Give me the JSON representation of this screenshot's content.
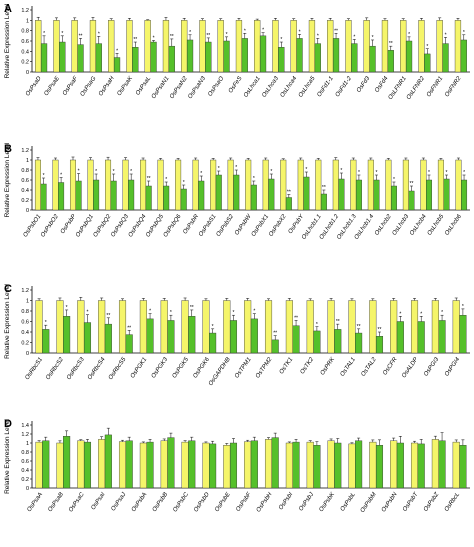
{
  "colors": {
    "series_yellow": "#f5f56a",
    "series_green": "#55c02a",
    "bar_stroke": "#333333",
    "axis": "#000000"
  },
  "chart_data": [
    {
      "type": "bar",
      "panel_label": "A",
      "ylabel": "Relative Expression Level",
      "ylim": [
        0,
        1.2
      ],
      "yticks": [
        "0",
        "0.2",
        "0.4",
        "0.6",
        "0.8",
        "1",
        "1.2"
      ],
      "grid": false,
      "categories": [
        "OsPsaD",
        "OsPsaE",
        "OsPsaF",
        "OsPsaG",
        "OsPsaH",
        "OsPsaK",
        "OsPsaL",
        "OsPsaN1",
        "OsPsaN2",
        "OsPsaN3",
        "OsPsaO",
        "OsFeS",
        "OsLhca1",
        "OsLhca3",
        "OsLhca4",
        "OsLhca5",
        "OsFd1-1",
        "OsFd1-2",
        "OsFd3",
        "OsFd4",
        "OsLFNR1",
        "OsLFNR2",
        "OsFNR1",
        "OsFNR2"
      ],
      "series": [
        {
          "color": "yellow",
          "values": [
            1,
            1,
            1,
            1,
            1,
            1,
            1,
            1,
            1,
            1,
            1,
            1,
            1,
            1,
            1,
            1,
            1,
            1,
            1,
            1,
            1,
            1,
            1,
            1
          ]
        },
        {
          "color": "green",
          "values": [
            0.55,
            0.58,
            0.53,
            0.55,
            0.28,
            0.48,
            0.58,
            0.5,
            0.62,
            0.58,
            0.6,
            0.65,
            0.7,
            0.48,
            0.65,
            0.55,
            0.65,
            0.55,
            0.5,
            0.42,
            0.6,
            0.35,
            0.55,
            0.62
          ]
        }
      ],
      "errors": [
        0.15,
        0.12,
        0.12,
        0.14,
        0.08,
        0.1,
        0.03,
        0.14,
        0.1,
        0.08,
        0.08,
        0.1,
        0.06,
        0.1,
        0.08,
        0.1,
        0.1,
        0.08,
        0.12,
        0.08,
        0.08,
        0.1,
        0.12,
        0.1
      ],
      "annotations": [
        "*",
        "*",
        "**",
        "*",
        "*",
        "**",
        "*",
        "**",
        "*",
        "**",
        "*",
        "*",
        "*",
        "*",
        "*",
        "*",
        "**",
        "*",
        "*",
        "**",
        "*",
        "*",
        "*",
        "*"
      ]
    },
    {
      "type": "bar",
      "panel_label": "B",
      "ylabel": "Relative Expression Level",
      "ylim": [
        0,
        1.2
      ],
      "yticks": [
        "0",
        "0.2",
        "0.4",
        "0.6",
        "0.8",
        "1",
        "1.2"
      ],
      "grid": false,
      "categories": [
        "OsPsbO1",
        "OsPsbO2",
        "OsPsbP",
        "OsPsbQ1",
        "OsPsbQ2",
        "OsPsbQ3",
        "OsPsbQ4",
        "OsPsbQ5",
        "OsPsbQ6",
        "OsPsbR",
        "OsPsbS1",
        "OsPsbS2",
        "OsPsbW",
        "OsPsbX1",
        "OsPsbX2",
        "OsPsbY",
        "OsLhcb1.1",
        "OsLhcb1.2",
        "OsLhcb1.3",
        "OsLhcb1.4",
        "OsLhcb2",
        "OsLhcb3",
        "OsLhcb4",
        "OsLhcb5",
        "OsLhcb6"
      ],
      "series": [
        {
          "color": "yellow",
          "values": [
            1,
            1,
            1,
            1,
            1,
            1,
            1,
            1,
            1,
            1,
            1,
            1,
            1,
            1,
            1,
            1,
            1,
            1,
            1,
            1,
            1,
            1,
            1,
            1,
            1
          ]
        },
        {
          "color": "green",
          "values": [
            0.52,
            0.55,
            0.58,
            0.6,
            0.58,
            0.6,
            0.48,
            0.48,
            0.42,
            0.58,
            0.7,
            0.7,
            0.5,
            0.62,
            0.25,
            0.66,
            0.32,
            0.62,
            0.6,
            0.6,
            0.48,
            0.38,
            0.6,
            0.62,
            0.6
          ]
        }
      ],
      "errors": [
        0.12,
        0.1,
        0.15,
        0.12,
        0.14,
        0.12,
        0.1,
        0.08,
        0.08,
        0.1,
        0.08,
        0.1,
        0.08,
        0.1,
        0.06,
        0.1,
        0.08,
        0.12,
        0.1,
        0.1,
        0.08,
        0.1,
        0.1,
        0.08,
        0.1
      ],
      "annotations": [
        "*",
        "*",
        "*",
        "*",
        "*",
        "*",
        "**",
        "*",
        "*",
        "*",
        "*",
        "*",
        "*",
        "*",
        "**",
        "*",
        "**",
        "*",
        "*",
        "*",
        "*",
        "**",
        "*",
        "*",
        "*"
      ]
    },
    {
      "type": "bar",
      "panel_label": "C",
      "ylabel": "Relative Expression Level",
      "ylim": [
        0,
        1.2
      ],
      "yticks": [
        "0",
        "0.2",
        "0.4",
        "0.6",
        "0.8",
        "1",
        "1.2"
      ],
      "grid": false,
      "categories": [
        "OsRbcS1",
        "OsRbcS2",
        "OsRbcS3",
        "OsRbcS4",
        "OsRbcS5",
        "OsPGK1",
        "OsPGK3",
        "OsPGK5",
        "OsPGK6",
        "OsGAPDHB",
        "OsTPM1",
        "OsTPM2",
        "OsTK1",
        "OsTK2",
        "OsPRK",
        "OsTAL1",
        "OsTAL2",
        "OsCFR",
        "OsALDP",
        "OsPGI3",
        "OsPGI4"
      ],
      "series": [
        {
          "color": "yellow",
          "values": [
            1,
            1,
            1,
            1,
            1,
            1,
            1,
            1,
            1,
            1,
            1,
            1,
            1,
            1,
            1,
            1,
            1,
            1,
            1,
            1,
            1
          ]
        },
        {
          "color": "green",
          "values": [
            0.45,
            0.7,
            0.58,
            0.55,
            0.35,
            0.65,
            0.62,
            0.7,
            0.38,
            0.62,
            0.65,
            0.25,
            0.52,
            0.42,
            0.45,
            0.38,
            0.32,
            0.6,
            0.6,
            0.62,
            0.72
          ]
        }
      ],
      "errors": [
        0.08,
        0.12,
        0.15,
        0.12,
        0.08,
        0.1,
        0.1,
        0.12,
        0.08,
        0.1,
        0.1,
        0.08,
        0.1,
        0.08,
        0.1,
        0.08,
        0.08,
        0.1,
        0.1,
        0.1,
        0.12
      ],
      "annotations": [
        "*",
        "*",
        "*",
        "**",
        "**",
        "*",
        "*",
        "**",
        "*",
        "*",
        "*",
        "**",
        "**",
        "*",
        "**",
        "**",
        "**",
        "*",
        "*",
        "*",
        "*"
      ]
    },
    {
      "type": "bar",
      "panel_label": "D",
      "ylabel": "Relative Expression Level",
      "ylim": [
        0,
        1.4
      ],
      "yticks": [
        "0",
        "0.2",
        "0.4",
        "0.6",
        "0.8",
        "1",
        "1.2",
        "1.4"
      ],
      "grid": false,
      "categories": [
        "OsPsaA",
        "OsPsaB",
        "OsPsaC",
        "OsPsaI",
        "OsPsaJ",
        "OsPsbA",
        "OsPsbB",
        "OsPsbC",
        "OsPsbD",
        "OsPsbE",
        "OsPsbF",
        "OsPsbH",
        "OsPsbI",
        "OsPsbJ",
        "OsPsbK",
        "OsPsbL",
        "OsPsbM",
        "OsPsbN",
        "OsPsbT",
        "OsPsbZ",
        "OsRbcL"
      ],
      "series": [
        {
          "color": "yellow",
          "values": [
            1.02,
            1.0,
            1.05,
            1.08,
            1.03,
            1.0,
            1.05,
            1.02,
            1.0,
            0.95,
            1.03,
            1.08,
            1.0,
            1.02,
            1.05,
            0.98,
            1.02,
            1.05,
            1.0,
            1.08,
            1.02
          ]
        },
        {
          "color": "green",
          "values": [
            1.05,
            1.15,
            1.02,
            1.18,
            1.05,
            1.02,
            1.12,
            1.05,
            0.98,
            1.0,
            1.05,
            1.12,
            1.02,
            0.95,
            1.0,
            1.05,
            0.95,
            1.0,
            0.98,
            1.05,
            0.95
          ]
        }
      ],
      "errors": [
        0.08,
        0.12,
        0.06,
        0.15,
        0.08,
        0.06,
        0.1,
        0.08,
        0.06,
        0.1,
        0.08,
        0.1,
        0.06,
        0.08,
        0.1,
        0.06,
        0.12,
        0.15,
        0.1,
        0.18,
        0.12
      ],
      "annotations": []
    }
  ]
}
